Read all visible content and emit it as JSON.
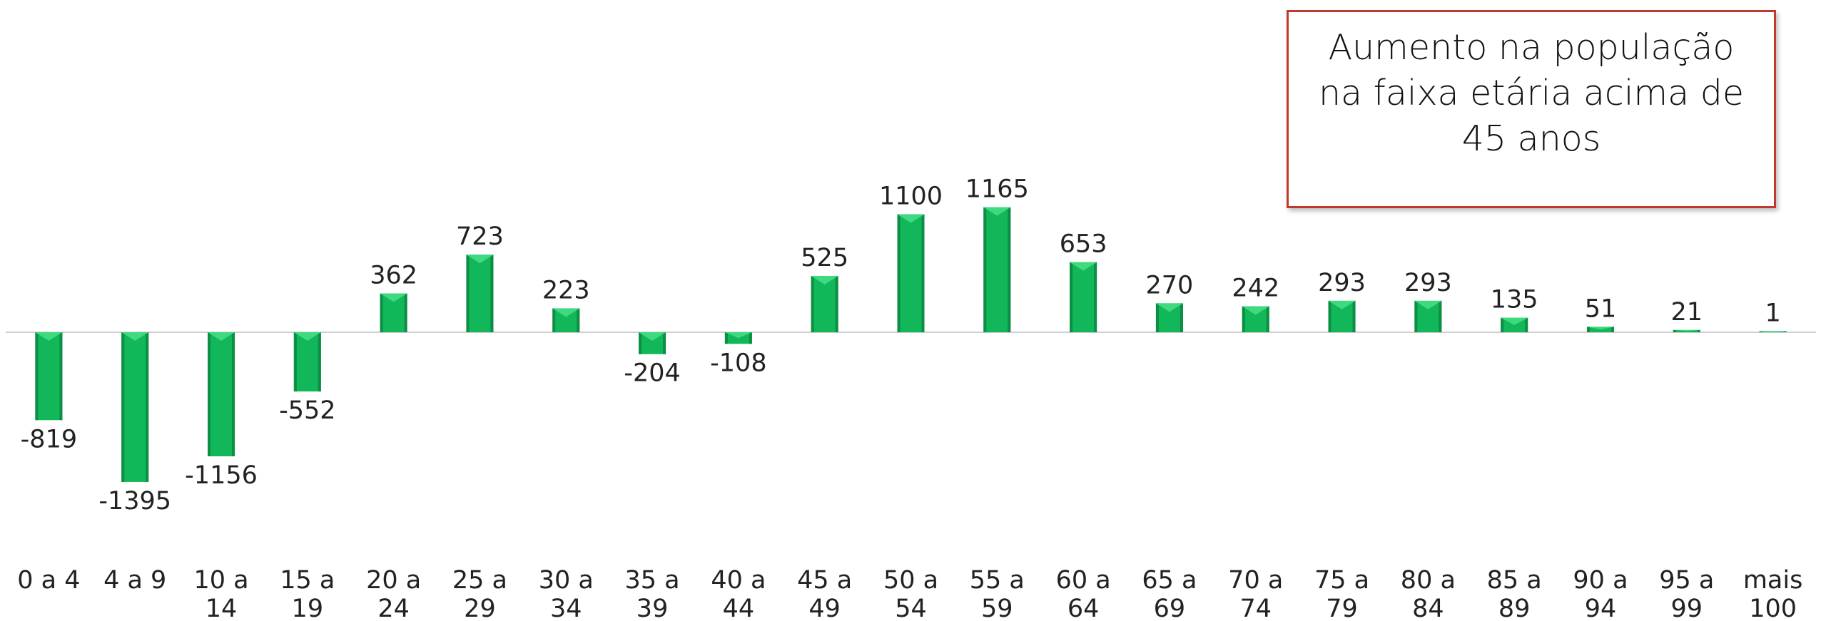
{
  "callout": {
    "text": "Aumento na população na faixa etária acima de 45 anos"
  },
  "colors": {
    "bar": "#12b75a",
    "bar_dark": "#0c8e44",
    "bar_light": "#3fd97f",
    "baseline": "#cfcfcf",
    "callout_border": "#c0392b"
  },
  "chart_data": {
    "type": "bar",
    "categories": [
      "0 a 4",
      "4 a 9",
      "10 a 14",
      "15 a 19",
      "20 a 24",
      "25 a 29",
      "30 a 34",
      "35 a 39",
      "40 a 44",
      "45 a 49",
      "50 a 54",
      "55 a 59",
      "60 a 64",
      "65 a 69",
      "70 a 74",
      "75 a 79",
      "80 a 84",
      "85 a 89",
      "90 a 94",
      "95 a 99",
      "mais 100"
    ],
    "category_lines": [
      [
        "0 a 4"
      ],
      [
        "4 a 9"
      ],
      [
        "10 a",
        "14"
      ],
      [
        "15 a",
        "19"
      ],
      [
        "20 a",
        "24"
      ],
      [
        "25 a",
        "29"
      ],
      [
        "30 a",
        "34"
      ],
      [
        "35 a",
        "39"
      ],
      [
        "40 a",
        "44"
      ],
      [
        "45 a",
        "49"
      ],
      [
        "50 a",
        "54"
      ],
      [
        "55 a",
        "59"
      ],
      [
        "60 a",
        "64"
      ],
      [
        "65 a",
        "69"
      ],
      [
        "70 a",
        "74"
      ],
      [
        "75 a",
        "79"
      ],
      [
        "80 a",
        "84"
      ],
      [
        "85 a",
        "89"
      ],
      [
        "90 a",
        "94"
      ],
      [
        "95 a",
        "99"
      ],
      [
        "mais",
        "100"
      ]
    ],
    "values": [
      -819,
      -1395,
      -1156,
      -552,
      362,
      723,
      223,
      -204,
      -108,
      525,
      1100,
      1165,
      653,
      270,
      242,
      293,
      293,
      135,
      51,
      21,
      1
    ],
    "value_labels": [
      "-819",
      "-1395",
      "-1156",
      "-552",
      "362",
      "723",
      "223",
      "-204",
      "-108",
      "525",
      "1100",
      "1165",
      "653",
      "270",
      "242",
      "293",
      "293",
      "135",
      "51",
      "21",
      "1"
    ],
    "title": "",
    "xlabel": "",
    "ylabel": "",
    "ylim": [
      -1800,
      3000
    ],
    "grid": false,
    "legend": "none"
  }
}
